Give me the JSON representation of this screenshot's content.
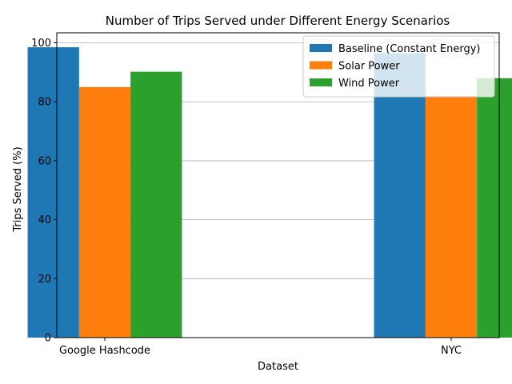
{
  "chart_data": {
    "type": "bar",
    "title": "Number of Trips Served under Different Energy Scenarios",
    "xlabel": "Dataset",
    "ylabel": "Trips Served (%)",
    "categories": [
      "Google Hashcode",
      "NYC"
    ],
    "series": [
      {
        "name": "Baseline (Constant Energy)",
        "color": "#1f77b4",
        "values": [
          98.5,
          96.5
        ]
      },
      {
        "name": "Solar Power",
        "color": "#ff7f0e",
        "values": [
          85.0,
          82.0
        ]
      },
      {
        "name": "Wind Power",
        "color": "#2ca02c",
        "values": [
          90.2,
          88.0
        ]
      }
    ],
    "ylim": [
      0,
      103.4
    ],
    "yticks": [
      0,
      20,
      40,
      60,
      80,
      100
    ],
    "grid": "y",
    "legend_position": "top-right"
  }
}
